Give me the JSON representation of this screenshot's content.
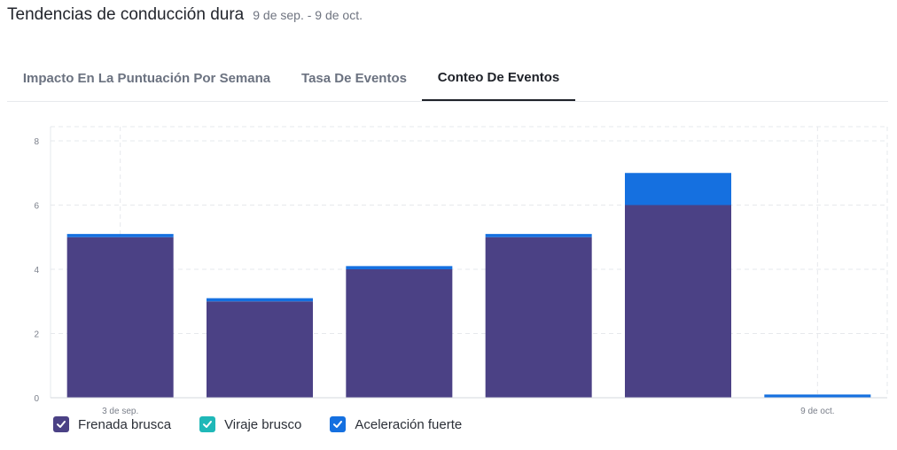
{
  "header": {
    "title": "Tendencias de conducción dura",
    "date_range": "9 de sep. - 9 de oct."
  },
  "tabs": [
    {
      "label": "Impacto En La Puntuación Por Semana",
      "active": false
    },
    {
      "label": "Tasa De Eventos",
      "active": false
    },
    {
      "label": "Conteo De Eventos",
      "active": true
    }
  ],
  "chart_data": {
    "type": "bar",
    "stacked": true,
    "categories": [
      "3 de sep.",
      "",
      "",
      "",
      "",
      "9 de oct."
    ],
    "x_tick_labels": [
      "3 de sep.",
      "9 de oct."
    ],
    "y_ticks": [
      0,
      2,
      4,
      6,
      8
    ],
    "ylim": [
      0,
      8
    ],
    "grid": true,
    "series": [
      {
        "name": "Frenada brusca",
        "color": "#4b4185",
        "values": [
          5,
          3,
          4,
          5,
          6,
          0
        ]
      },
      {
        "name": "Viraje brusco",
        "color": "#1fb8b8",
        "values": [
          0,
          0,
          0,
          0,
          0,
          0
        ]
      },
      {
        "name": "Aceleración fuerte",
        "color": "#1570e0",
        "values": [
          0.1,
          0.1,
          0.1,
          0.1,
          1,
          0.1
        ]
      }
    ]
  },
  "legend": [
    {
      "label": "Frenada brusca",
      "color": "#4b4185",
      "icon": "check-icon"
    },
    {
      "label": "Viraje brusco",
      "color": "#1fb8b8",
      "icon": "check-icon"
    },
    {
      "label": "Aceleración fuerte",
      "color": "#1570e0",
      "icon": "check-icon"
    }
  ]
}
